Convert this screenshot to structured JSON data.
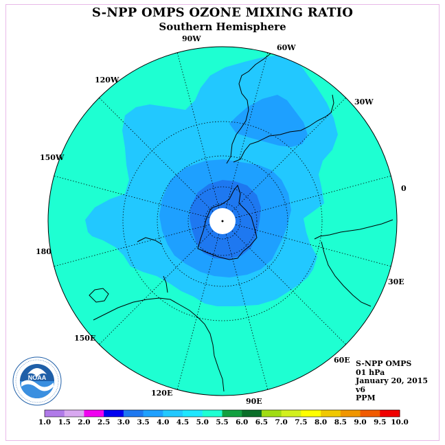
{
  "title": "S-NPP OMPS OZONE MIXING RATIO",
  "subtitle": "Southern Hemisphere",
  "info": {
    "instrument": "S-NPP OMPS",
    "level": "01 hPa",
    "date": "January 20, 2015",
    "version": "v6",
    "units": "PPM"
  },
  "map": {
    "projection": "polar-stereographic",
    "hemisphere": "south",
    "longitude_labels": [
      "90W",
      "60W",
      "30W",
      "0",
      "30E",
      "60E",
      "90E",
      "120E",
      "150E",
      "180",
      "150W",
      "120W"
    ]
  },
  "logo": {
    "name": "NOAA",
    "text": "NOAA"
  },
  "colorbar": {
    "ticks": [
      "1.0",
      "1.5",
      "2.0",
      "2.5",
      "3.0",
      "3.5",
      "4.0",
      "4.5",
      "5.0",
      "5.5",
      "6.0",
      "6.5",
      "7.0",
      "7.5",
      "8.0",
      "8.5",
      "9.0",
      "9.5",
      "10.0"
    ],
    "colors": [
      "#b07ae8",
      "#d8a8f0",
      "#f000f0",
      "#0000f0",
      "#1e78f0",
      "#1ea0ff",
      "#22c8ff",
      "#1ee6ff",
      "#1effd2",
      "#12a040",
      "#0a6e28",
      "#a0dc14",
      "#d2f01e",
      "#ffff00",
      "#f0c800",
      "#f09600",
      "#f05a00",
      "#f00000",
      "#8b5a3c"
    ]
  },
  "field_colors": {
    "level_5_0": "#1effd2",
    "level_4_5": "#22c8ff",
    "level_4_0": "#1ea0ff",
    "level_3_5": "#1e78f0"
  }
}
